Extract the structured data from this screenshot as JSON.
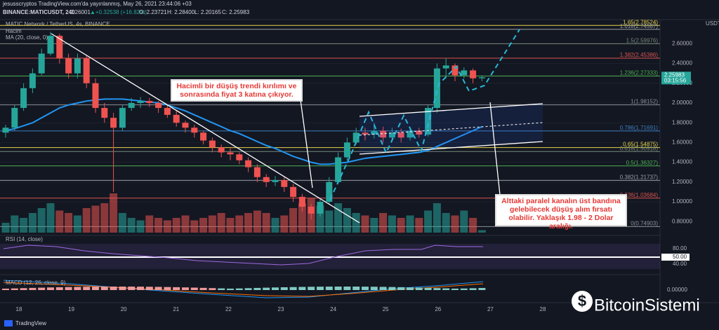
{
  "header": {
    "line1": "jesusscryptos TradingView.com'da yayınlanmış, May 26, 2021 23:44:06 +03",
    "symbol": "BINANCE:MATICUSDT, 240",
    "last": "2.26001",
    "change": "▲+0.32538 (+16.82%)",
    "o": "O: 2.23721",
    "h": "H: 2.28400",
    "l": "L: 2.20165",
    "c": "C: 2.25983"
  },
  "chart": {
    "title": "MATIC Network / TetherUS, 4s, BINANCE",
    "volume_label": "Hacim",
    "ma_label": "MA (20, close, 0)",
    "currency": "USDT",
    "price_box": "2.25983",
    "countdown": "03:15:56",
    "price_ticks": [
      {
        "value": 2.6,
        "label": "2.60000"
      },
      {
        "value": 2.4,
        "label": "2.40000"
      },
      {
        "value": 2.2,
        "label": "2.20000"
      },
      {
        "value": 2.0,
        "label": "2.00000"
      },
      {
        "value": 1.8,
        "label": "1.80000"
      },
      {
        "value": 1.6,
        "label": "1.60000"
      },
      {
        "value": 1.4,
        "label": "1.40000"
      },
      {
        "value": 1.2,
        "label": "1.20000"
      },
      {
        "value": 1.0,
        "label": "1.00000"
      },
      {
        "value": 0.8,
        "label": "0.80000"
      }
    ],
    "fib": [
      {
        "label": "1.65(2.78524)",
        "value": 2.78524,
        "color": "#e6d34a"
      },
      {
        "label": "1.618(2.74587)",
        "value": 2.74587,
        "color": "#9aa0a6"
      },
      {
        "label": "1.5(2.59976)",
        "value": 2.59976,
        "color": "#7a8a7a"
      },
      {
        "label": "1.382(2.45386)",
        "value": 2.45386,
        "color": "#d9534f"
      },
      {
        "label": "1.236(2.27333)",
        "value": 2.27333,
        "color": "#4caf50"
      },
      {
        "label": "1(1.98152)",
        "value": 1.98152,
        "color": "#8a8f98"
      },
      {
        "label": "0.786(1.71691)",
        "value": 1.71691,
        "color": "#3f7fbf"
      },
      {
        "label": "0.65(1.54875)",
        "value": 1.54875,
        "color": "#e6d34a"
      },
      {
        "label": "0.618(1.50918)",
        "value": 1.50918,
        "color": "#7a8a7a"
      },
      {
        "label": "0.5(1.36327)",
        "value": 1.36327,
        "color": "#4caf50"
      },
      {
        "label": "0.382(1.21737)",
        "value": 1.21737,
        "color": "#9aa0a6"
      },
      {
        "label": "0.236(1.03684)",
        "value": 1.03684,
        "color": "#d9534f"
      },
      {
        "label": "0(0.74903)",
        "value": 0.74903,
        "color": "#8a8f98"
      }
    ],
    "open": [
      1.7,
      1.75,
      1.95,
      2.15,
      2.3,
      2.5,
      2.68,
      2.45,
      2.3,
      2.45,
      2.2,
      1.95,
      1.85,
      1.75,
      1.95,
      2.0,
      2.02,
      2.0,
      1.95,
      1.88,
      1.8,
      1.75,
      1.7,
      1.62,
      1.55,
      1.5,
      1.48,
      1.42,
      1.35,
      1.25,
      1.2,
      1.22,
      1.15,
      1.05,
      0.95,
      0.88,
      1.0,
      1.2,
      1.45,
      1.6,
      1.7,
      1.68,
      1.72,
      1.65,
      1.7,
      1.65,
      1.72,
      1.68,
      1.95,
      2.35,
      2.38,
      2.28,
      2.33,
      2.25
    ],
    "high": [
      1.78,
      1.98,
      2.2,
      2.35,
      2.55,
      2.72,
      2.7,
      2.5,
      2.5,
      2.48,
      2.25,
      2.0,
      1.9,
      1.98,
      2.05,
      2.06,
      2.05,
      2.02,
      1.98,
      1.92,
      1.82,
      1.78,
      1.72,
      1.65,
      1.58,
      1.55,
      1.5,
      1.45,
      1.38,
      1.28,
      1.26,
      1.25,
      1.18,
      1.08,
      0.98,
      1.04,
      1.25,
      1.5,
      1.65,
      1.75,
      1.75,
      1.8,
      1.76,
      1.75,
      1.74,
      1.76,
      1.75,
      1.98,
      2.4,
      2.45,
      2.4,
      2.36,
      2.35,
      2.28
    ],
    "low": [
      1.65,
      1.72,
      1.92,
      2.1,
      2.28,
      2.48,
      2.4,
      2.25,
      2.25,
      2.15,
      1.9,
      1.8,
      1.1,
      1.72,
      1.92,
      1.95,
      1.96,
      1.9,
      1.85,
      1.76,
      1.7,
      1.65,
      1.58,
      1.5,
      1.45,
      1.42,
      1.38,
      1.3,
      1.2,
      1.15,
      1.16,
      1.1,
      1.0,
      0.9,
      0.82,
      0.85,
      0.98,
      1.18,
      1.42,
      1.58,
      1.62,
      1.64,
      1.6,
      1.62,
      1.6,
      1.62,
      1.65,
      1.66,
      1.9,
      2.25,
      2.22,
      2.25,
      2.2,
      2.22
    ],
    "close": [
      1.75,
      1.95,
      2.15,
      2.3,
      2.5,
      2.68,
      2.45,
      2.3,
      2.45,
      2.2,
      1.95,
      1.85,
      1.75,
      1.95,
      2.0,
      2.02,
      2.0,
      1.95,
      1.88,
      1.8,
      1.75,
      1.7,
      1.62,
      1.55,
      1.5,
      1.48,
      1.42,
      1.35,
      1.25,
      1.2,
      1.22,
      1.15,
      1.05,
      0.95,
      0.88,
      1.0,
      1.2,
      1.45,
      1.6,
      1.7,
      1.68,
      1.72,
      1.65,
      1.7,
      1.65,
      1.72,
      1.68,
      1.95,
      2.35,
      2.38,
      2.28,
      2.33,
      2.25,
      2.26
    ],
    "volume": [
      20,
      35,
      30,
      40,
      50,
      60,
      45,
      40,
      35,
      50,
      55,
      60,
      80,
      40,
      30,
      25,
      35,
      30,
      25,
      30,
      35,
      25,
      30,
      35,
      40,
      30,
      35,
      40,
      45,
      40,
      30,
      35,
      50,
      60,
      70,
      55,
      45,
      60,
      50,
      40,
      35,
      30,
      40,
      35,
      30,
      35,
      30,
      45,
      60,
      40,
      35,
      45,
      30,
      5
    ],
    "ma": [
      1.72,
      1.74,
      1.77,
      1.8,
      1.85,
      1.9,
      1.95,
      1.98,
      2.0,
      2.02,
      2.03,
      2.04,
      2.04,
      2.04,
      2.03,
      2.02,
      2.01,
      2.0,
      1.98,
      1.95,
      1.92,
      1.88,
      1.84,
      1.8,
      1.76,
      1.72,
      1.69,
      1.65,
      1.61,
      1.57,
      1.54,
      1.5,
      1.46,
      1.43,
      1.4,
      1.38,
      1.38,
      1.39,
      1.4,
      1.42,
      1.44,
      1.45,
      1.46,
      1.47,
      1.48,
      1.49,
      1.5,
      1.52,
      1.56,
      1.6,
      1.64,
      1.68,
      1.72,
      1.76
    ]
  },
  "rsi": {
    "label": "RSI (14, close)",
    "ticks": [
      "80.00",
      "50.00",
      "40.00"
    ]
  },
  "macd": {
    "label": "MACD (12, 26, close, 9)",
    "tick": "0.00000"
  },
  "dates": [
    18,
    19,
    20,
    21,
    22,
    23,
    24,
    25,
    26,
    27,
    28
  ],
  "annotations": {
    "first": "Hacimli bir düşüş trendi kırılımı ve sonrasında fiyat 3 katına çıkıyor.",
    "second": "Alttaki paralel kanalın üst bandına gelebilecek düşüş alım fırsatı olabilir. Yaklaşık 1.98 - 2 Dolar aralığı."
  },
  "footer": "TradingView",
  "watermark": "BitcoinSistemi"
}
